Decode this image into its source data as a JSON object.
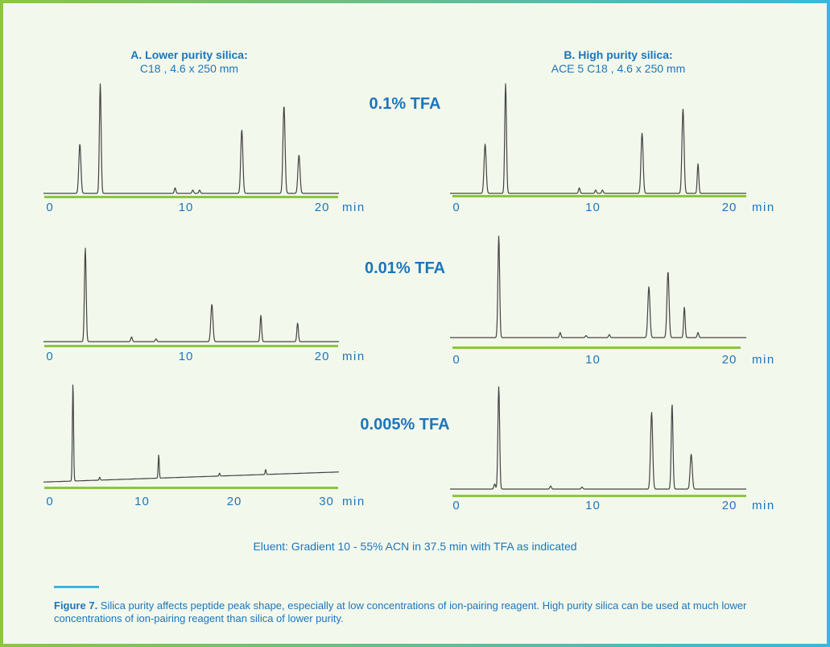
{
  "panel_a": {
    "title_bold": "A. Lower purity silica:",
    "title_sub": "C18 , 4.6 x 250 mm"
  },
  "panel_b": {
    "title_bold": "B. High purity silica:",
    "title_sub": "ACE 5 C18 , 4.6 x 250 mm"
  },
  "tfa_labels": [
    "0.1% TFA",
    "0.01% TFA",
    "0.005% TFA"
  ],
  "eluent": "Eluent: Gradient 10 - 55% ACN in 37.5 min with TFA as indicated",
  "caption": {
    "bold": "Figure 7.",
    "text": " Silica purity affects peptide peak shape, especially at low concentrations of ion-pairing reagent. High purity silica can be used at much lower concentrations of ion-pairing reagent than silica of lower purity."
  },
  "colors": {
    "accent_blue": "#1b76bc",
    "axis_green": "#8cc63f",
    "trace": "#444444",
    "background": "#f3f8ec"
  },
  "chart_data": [
    {
      "type": "line",
      "panel": "A",
      "condition": "0.1% TFA",
      "x_ticks": [
        "0",
        "10",
        "20"
      ],
      "x_unit": "min",
      "xlim": [
        0,
        21
      ],
      "peaks": [
        {
          "x": 2.2,
          "h": 0.45
        },
        {
          "x": 3.7,
          "h": 1.0
        },
        {
          "x": 9.2,
          "h": 0.05
        },
        {
          "x": 10.5,
          "h": 0.03
        },
        {
          "x": 11.0,
          "h": 0.03
        },
        {
          "x": 14.1,
          "h": 0.58
        },
        {
          "x": 17.2,
          "h": 0.8
        },
        {
          "x": 18.3,
          "h": 0.35
        }
      ]
    },
    {
      "type": "line",
      "panel": "A",
      "condition": "0.01% TFA",
      "x_ticks": [
        "0",
        "10",
        "20"
      ],
      "x_unit": "min",
      "xlim": [
        0,
        21
      ],
      "peaks": [
        {
          "x": 2.6,
          "h": 1.0
        },
        {
          "x": 6.0,
          "h": 0.05
        },
        {
          "x": 7.8,
          "h": 0.03
        },
        {
          "x": 11.9,
          "h": 0.4
        },
        {
          "x": 15.5,
          "h": 0.28
        },
        {
          "x": 18.2,
          "h": 0.2
        }
      ]
    },
    {
      "type": "line",
      "panel": "A",
      "condition": "0.005% TFA",
      "x_ticks": [
        "0",
        "10",
        "20",
        "30"
      ],
      "x_unit": "min",
      "xlim": [
        0,
        31
      ],
      "peaks": [
        {
          "x": 2.5,
          "h": 1.0
        },
        {
          "x": 5.4,
          "h": 0.03
        },
        {
          "x": 11.8,
          "h": 0.24
        },
        {
          "x": 18.4,
          "h": 0.03
        },
        {
          "x": 23.4,
          "h": 0.05
        }
      ]
    },
    {
      "type": "line",
      "panel": "B",
      "condition": "0.1% TFA",
      "x_ticks": [
        "0",
        "10",
        "20"
      ],
      "x_unit": "min",
      "xlim": [
        0,
        21
      ],
      "peaks": [
        {
          "x": 2.1,
          "h": 0.45
        },
        {
          "x": 3.6,
          "h": 1.0
        },
        {
          "x": 9.0,
          "h": 0.05
        },
        {
          "x": 10.2,
          "h": 0.03
        },
        {
          "x": 10.7,
          "h": 0.03
        },
        {
          "x": 13.6,
          "h": 0.55
        },
        {
          "x": 16.6,
          "h": 0.77
        },
        {
          "x": 17.7,
          "h": 0.27
        }
      ]
    },
    {
      "type": "line",
      "panel": "B",
      "condition": "0.01% TFA",
      "x_ticks": [
        "0",
        "10",
        "20"
      ],
      "x_unit": "min",
      "xlim": [
        0,
        21
      ],
      "peaks": [
        {
          "x": 3.1,
          "h": 1.0
        },
        {
          "x": 7.6,
          "h": 0.05
        },
        {
          "x": 9.5,
          "h": 0.02
        },
        {
          "x": 11.2,
          "h": 0.03
        },
        {
          "x": 14.1,
          "h": 0.5
        },
        {
          "x": 15.5,
          "h": 0.65
        },
        {
          "x": 16.7,
          "h": 0.3
        },
        {
          "x": 17.7,
          "h": 0.05
        }
      ]
    },
    {
      "type": "line",
      "panel": "B",
      "condition": "0.005% TFA",
      "x_ticks": [
        "0",
        "10",
        "20"
      ],
      "x_unit": "min",
      "xlim": [
        0,
        21
      ],
      "peaks": [
        {
          "x": 2.8,
          "h": 0.05
        },
        {
          "x": 3.1,
          "h": 1.0
        },
        {
          "x": 6.9,
          "h": 0.03
        },
        {
          "x": 9.2,
          "h": 0.02
        },
        {
          "x": 14.3,
          "h": 0.75
        },
        {
          "x": 15.8,
          "h": 0.83
        },
        {
          "x": 17.2,
          "h": 0.34
        }
      ]
    }
  ]
}
